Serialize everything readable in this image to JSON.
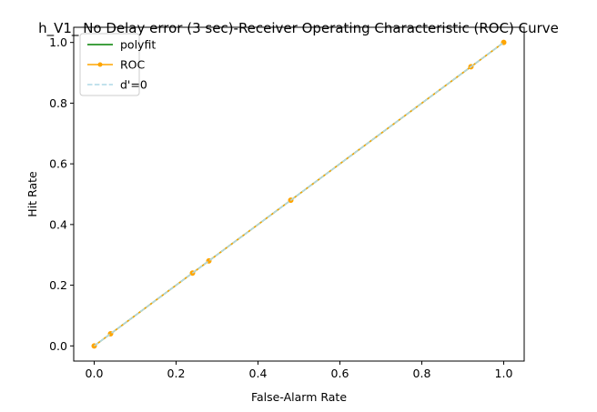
{
  "chart_data": {
    "type": "line",
    "title": "h_V1_ No Delay error (3 sec)-Receiver Operating Characteristic (ROC) Curve",
    "xlabel": "False-Alarm Rate",
    "ylabel": "Hit Rate",
    "xlim": [
      -0.05,
      1.05
    ],
    "ylim": [
      -0.05,
      1.05
    ],
    "xticks": [
      0.0,
      0.2,
      0.4,
      0.6,
      0.8,
      1.0
    ],
    "yticks": [
      0.0,
      0.2,
      0.4,
      0.6,
      0.8,
      1.0
    ],
    "xtick_labels": [
      "0.0",
      "0.2",
      "0.4",
      "0.6",
      "0.8",
      "1.0"
    ],
    "ytick_labels": [
      "0.0",
      "0.2",
      "0.4",
      "0.6",
      "0.8",
      "1.0"
    ],
    "grid": false,
    "legend_position": "top-left",
    "series": [
      {
        "name": "polyfit",
        "style": "solid",
        "marker": "none",
        "color": "#008000",
        "x": [
          0.0,
          1.0
        ],
        "y": [
          0.0,
          1.0
        ]
      },
      {
        "name": "ROC",
        "style": "solid",
        "marker": "circle",
        "color": "#ffa500",
        "x": [
          0.0,
          0.04,
          0.24,
          0.28,
          0.48,
          0.92,
          1.0
        ],
        "y": [
          0.0,
          0.04,
          0.24,
          0.28,
          0.48,
          0.92,
          1.0
        ]
      },
      {
        "name": "d'=0",
        "style": "dashed",
        "marker": "none",
        "color": "#add8e6",
        "x": [
          0.0,
          1.0
        ],
        "y": [
          0.0,
          1.0
        ]
      }
    ]
  }
}
